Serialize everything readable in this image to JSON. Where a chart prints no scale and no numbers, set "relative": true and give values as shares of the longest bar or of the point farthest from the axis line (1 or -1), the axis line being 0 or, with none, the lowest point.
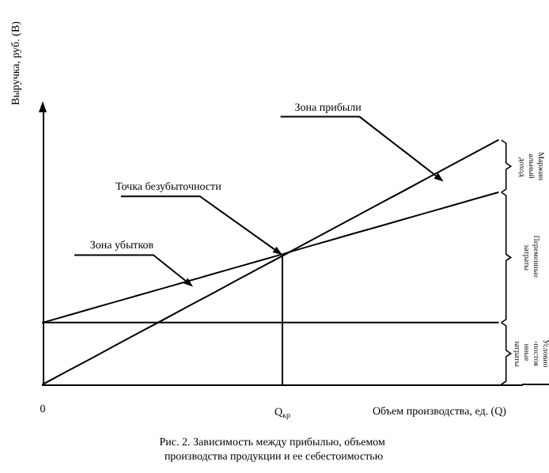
{
  "chart_data": {
    "type": "line",
    "title": "Рис. 2. Зависимость между прибылью, объемом производства продукции и ее себестоимостью",
    "xlabel": "Объем производства, ед. (Q)",
    "ylabel": "Выручка, руб. (В)",
    "relative": true,
    "marker": "none",
    "line_style": "solid",
    "grid": false,
    "categories": [
      "0",
      null,
      null,
      null,
      null,
      null,
      null,
      null,
      null,
      null,
      "Q$_{кр}$",
      null,
      null,
      null,
      null,
      null,
      null,
      null,
      null,
      null,
      null
    ],
    "series": [
      {
        "color": "#000000",
        "values": [
          0,
          0.053,
          0.105,
          0.158,
          0.211,
          0.263,
          0.316,
          0.368,
          0.421,
          0.474,
          0.526,
          0.579,
          0.632,
          0.684,
          0.737,
          0.789,
          0.842,
          0.895,
          0.947,
          1,
          null
        ]
      },
      {
        "color": "#000000",
        "values": [
          0.253,
          0.281,
          0.309,
          0.337,
          0.365,
          0.393,
          0.421,
          0.449,
          0.477,
          0.505,
          0.533,
          0.562,
          0.59,
          0.618,
          0.646,
          0.674,
          0.702,
          0.73,
          0.758,
          0.786,
          null
        ]
      },
      {
        "color": "#000000",
        "values": [
          0.253,
          0.253,
          0.253,
          0.253,
          0.253,
          0.253,
          0.253,
          0.253,
          0.253,
          0.253,
          0.253,
          0.253,
          0.253,
          0.253,
          0.253,
          0.253,
          0.253,
          0.253,
          0.253,
          0.253,
          null
        ]
      }
    ],
    "ref_lines": [
      {
        "axis": "x",
        "value": "Q$_{кр}$",
        "color": "#000000"
      }
    ],
    "annotations": [
      "Зона прибыли",
      "Точка безубыточности",
      "Зона убытков",
      "Маржинальный доход",
      "Переменные затраты",
      "Условно-постоянные затраты"
    ]
  }
}
